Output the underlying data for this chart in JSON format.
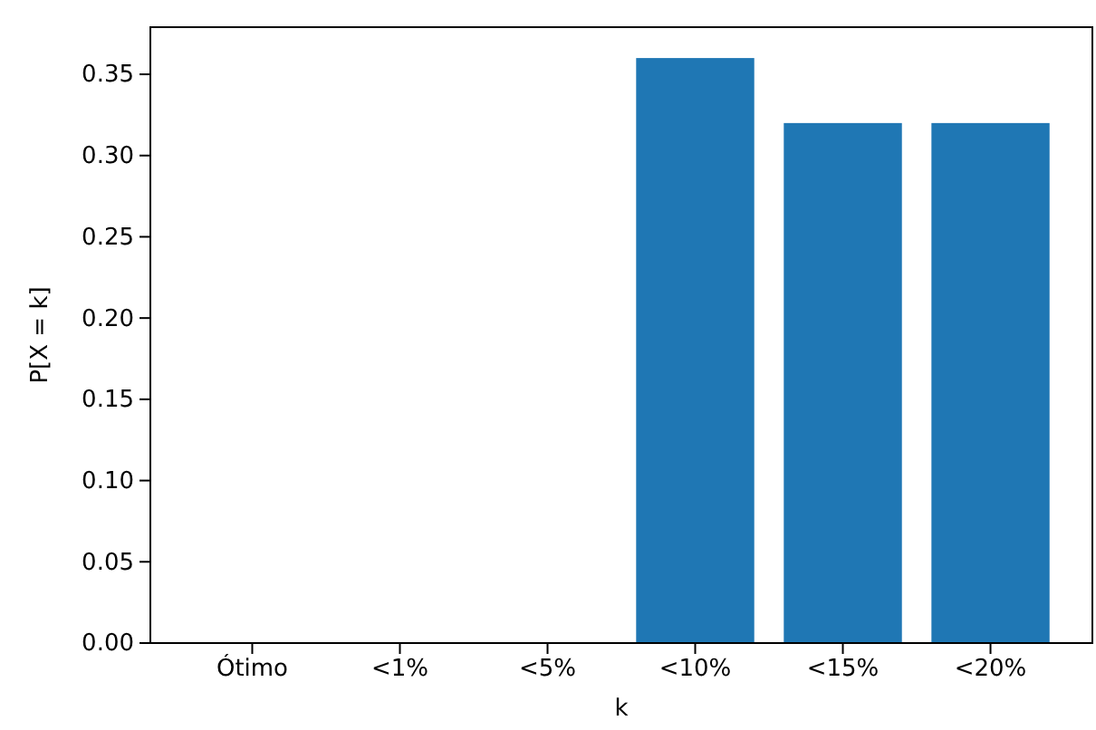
{
  "chart_data": {
    "type": "bar",
    "xlabel": "k",
    "ylabel": "P[X = k]",
    "categories": [
      "Ótimo",
      "<1%",
      "<5%",
      "<10%",
      "<15%",
      "<20%"
    ],
    "values": [
      0,
      0,
      0,
      0.36,
      0.32,
      0.32
    ],
    "color": "#1f77b4",
    "ylim": [
      0,
      0.379
    ],
    "yticks": [
      {
        "value": 0,
        "label": "0.00"
      },
      {
        "value": 0.05,
        "label": "0.05"
      },
      {
        "value": 0.1,
        "label": "0.10"
      },
      {
        "value": 0.15,
        "label": "0.15"
      },
      {
        "value": 0.2,
        "label": "0.20"
      },
      {
        "value": 0.25,
        "label": "0.25"
      },
      {
        "value": 0.3,
        "label": "0.30"
      },
      {
        "value": 0.35,
        "label": "0.35"
      }
    ],
    "grid": false
  }
}
